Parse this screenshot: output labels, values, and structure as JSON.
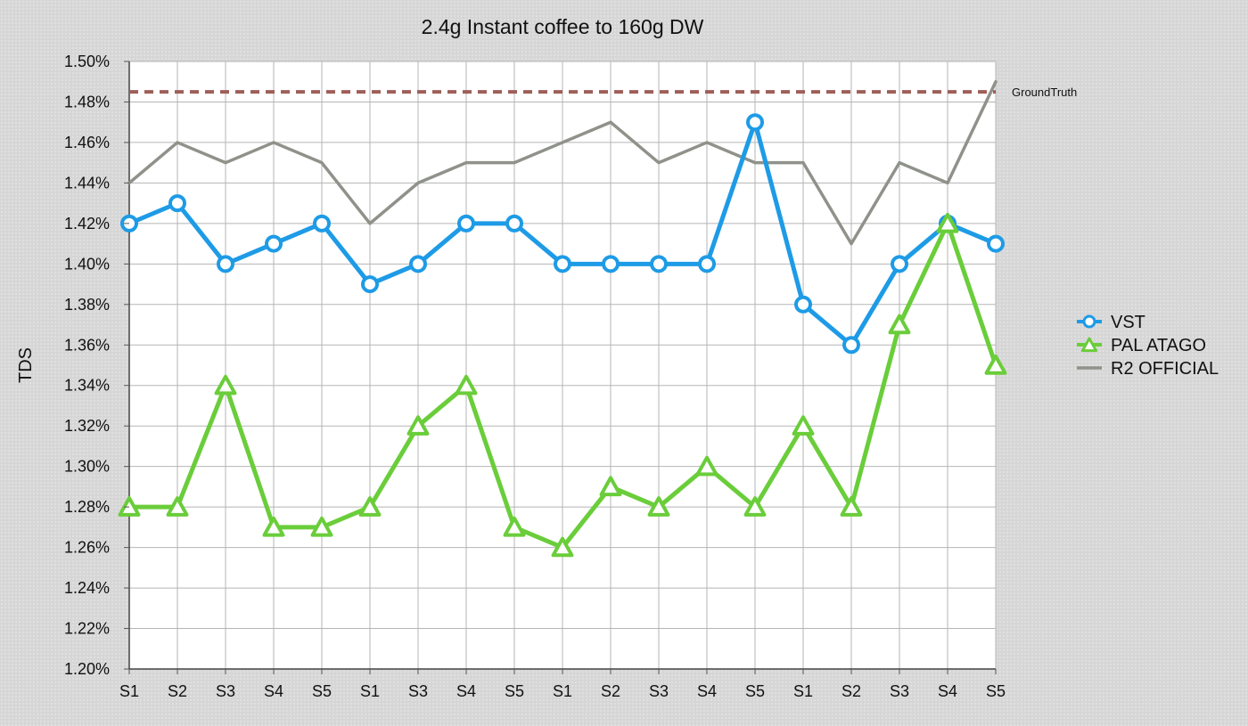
{
  "chart_data": {
    "type": "line",
    "title": "2.4g Instant coffee to 160g DW",
    "xlabel": "",
    "ylabel": "TDS",
    "ylim": [
      1.2,
      1.5
    ],
    "y_tick_step": 0.02,
    "y_tick_format": "percent-2dp",
    "grid": true,
    "legend_position": "right",
    "categories": [
      "S1",
      "S2",
      "S3",
      "S4",
      "S5",
      "S1",
      "S3",
      "S4",
      "S5",
      "S1",
      "S2",
      "S3",
      "S4",
      "S5",
      "S1",
      "S2",
      "S3",
      "S4",
      "S5"
    ],
    "series": [
      {
        "name": "VST",
        "color": "#1e9be6",
        "marker": "circle",
        "values": [
          1.42,
          1.43,
          1.4,
          1.41,
          1.42,
          1.39,
          1.4,
          1.42,
          1.42,
          1.4,
          1.4,
          1.4,
          1.4,
          1.47,
          1.38,
          1.36,
          1.4,
          1.42,
          1.41
        ]
      },
      {
        "name": "PAL ATAGO",
        "color": "#6acd3a",
        "marker": "triangle",
        "values": [
          1.28,
          1.28,
          1.34,
          1.27,
          1.27,
          1.28,
          1.32,
          1.34,
          1.27,
          1.26,
          1.29,
          1.28,
          1.3,
          1.28,
          1.32,
          1.28,
          1.37,
          1.42,
          1.35
        ]
      },
      {
        "name": "R2 OFFICIAL",
        "color": "#8f928a",
        "marker": "none",
        "values": [
          1.44,
          1.46,
          1.45,
          1.46,
          1.45,
          1.42,
          1.44,
          1.45,
          1.45,
          1.46,
          1.47,
          1.45,
          1.46,
          1.45,
          1.45,
          1.41,
          1.45,
          1.44,
          1.49
        ]
      }
    ],
    "reference_line": {
      "label": "GroundTruth",
      "value": 1.485,
      "color": "#9e5f58",
      "style": "dashed"
    }
  }
}
